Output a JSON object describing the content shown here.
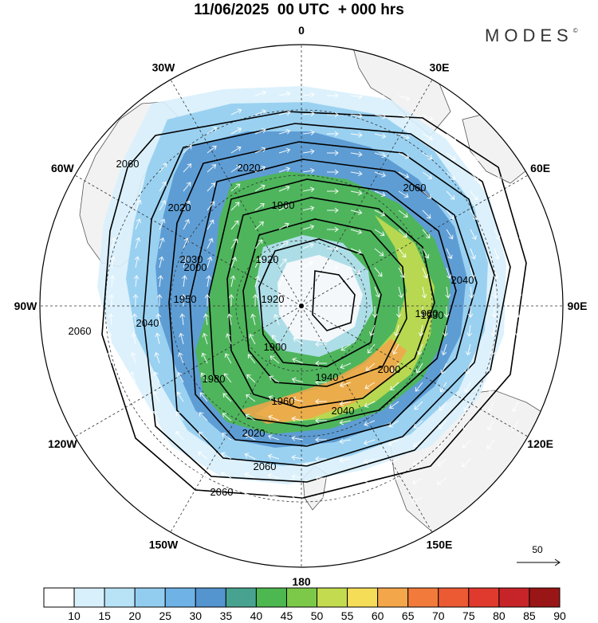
{
  "title": "11/06/2025  00 UTC  + 000 hrs",
  "logo": "MODES",
  "logo_mark": "©",
  "longitude_labels": [
    {
      "text": "0",
      "lon": 0
    },
    {
      "text": "30E",
      "lon": 30
    },
    {
      "text": "60E",
      "lon": 60
    },
    {
      "text": "90E",
      "lon": 90
    },
    {
      "text": "120E",
      "lon": 120
    },
    {
      "text": "150E",
      "lon": 150
    },
    {
      "text": "180",
      "lon": 180
    },
    {
      "text": "150W",
      "lon": -150
    },
    {
      "text": "120W",
      "lon": -120
    },
    {
      "text": "90W",
      "lon": -90
    },
    {
      "text": "60W",
      "lon": -60
    },
    {
      "text": "30W",
      "lon": -30
    }
  ],
  "contour_labels": [
    "1900",
    "1920",
    "1920",
    "1940",
    "1960",
    "1960",
    "1980",
    "1980",
    "2000",
    "2000",
    "2020",
    "2020",
    "2020",
    "2040",
    "2040",
    "2040",
    "2060",
    "2060",
    "2060",
    "2060",
    "2060",
    "1930",
    "1950",
    "2030"
  ],
  "reference_vector": {
    "value": "50"
  },
  "colorbar": {
    "labels": [
      "10",
      "15",
      "20",
      "25",
      "30",
      "35",
      "40",
      "45",
      "50",
      "55",
      "60",
      "65",
      "70",
      "75",
      "80",
      "85",
      "90"
    ],
    "colors": [
      "#ffffff",
      "#d8f0fb",
      "#b8e2f6",
      "#92cdf0",
      "#6eb2e6",
      "#5494cf",
      "#47a38f",
      "#4cb84f",
      "#7cc94a",
      "#c3dc4f",
      "#f5dd57",
      "#f4a64a",
      "#f27b3b",
      "#ec5a33",
      "#e03a2e",
      "#c72429",
      "#9a1616"
    ]
  }
}
